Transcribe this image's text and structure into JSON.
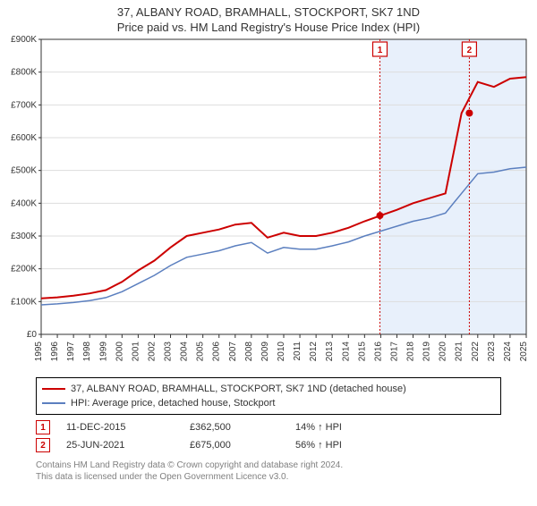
{
  "title_main": "37, ALBANY ROAD, BRAMHALL, STOCKPORT, SK7 1ND",
  "title_sub": "Price paid vs. HM Land Registry's House Price Index (HPI)",
  "chart": {
    "type": "line",
    "plot_bg": "#ffffff",
    "axis_color": "#333333",
    "grid_color": "#dddddd",
    "shade_color": "#e8f0fb",
    "x_years": [
      1995,
      1996,
      1997,
      1998,
      1999,
      2000,
      2001,
      2002,
      2003,
      2004,
      2005,
      2006,
      2007,
      2008,
      2009,
      2010,
      2011,
      2012,
      2013,
      2014,
      2015,
      2016,
      2017,
      2018,
      2019,
      2020,
      2021,
      2022,
      2023,
      2024,
      2025
    ],
    "xlim": [
      1995,
      2025
    ],
    "ylim": [
      0,
      900000
    ],
    "ytick_step": 100000,
    "ytick_labels": [
      "£0",
      "£100K",
      "£200K",
      "£300K",
      "£400K",
      "£500K",
      "£600K",
      "£700K",
      "£800K",
      "£900K"
    ],
    "series": [
      {
        "name": "37, ALBANY ROAD, BRAMHALL, STOCKPORT, SK7 1ND (detached house)",
        "color": "#cc0000",
        "width": 2,
        "y_by_year": [
          110000,
          113000,
          118000,
          125000,
          135000,
          160000,
          195000,
          225000,
          265000,
          300000,
          310000,
          320000,
          335000,
          340000,
          295000,
          310000,
          300000,
          300000,
          310000,
          325000,
          345000,
          362500,
          380000,
          400000,
          415000,
          430000,
          675000,
          770000,
          755000,
          780000,
          785000
        ]
      },
      {
        "name": "HPI: Average price, detached house, Stockport",
        "color": "#5b7fbf",
        "width": 1.5,
        "y_by_year": [
          90000,
          93000,
          97000,
          103000,
          112000,
          130000,
          155000,
          180000,
          210000,
          235000,
          245000,
          255000,
          270000,
          280000,
          248000,
          265000,
          260000,
          260000,
          270000,
          282000,
          300000,
          315000,
          330000,
          345000,
          355000,
          370000,
          430000,
          490000,
          495000,
          505000,
          510000
        ]
      }
    ],
    "sale_markers": [
      {
        "num": "1",
        "year_frac": 2015.95,
        "price": 362500,
        "color": "#cc0000"
      },
      {
        "num": "2",
        "year_frac": 2021.48,
        "price": 675000,
        "color": "#cc0000"
      }
    ],
    "shaded_spans": [
      {
        "from": 2015.95,
        "to": 2021.48
      },
      {
        "from": 2021.48,
        "to": 2025.0
      }
    ]
  },
  "legend": {
    "rows": [
      {
        "color": "#cc0000",
        "label": "37, ALBANY ROAD, BRAMHALL, STOCKPORT, SK7 1ND (detached house)"
      },
      {
        "color": "#5b7fbf",
        "label": "HPI: Average price, detached house, Stockport"
      }
    ]
  },
  "sales": [
    {
      "num": "1",
      "color": "#cc0000",
      "date": "11-DEC-2015",
      "price": "£362,500",
      "pct": "14% ↑ HPI"
    },
    {
      "num": "2",
      "color": "#cc0000",
      "date": "25-JUN-2021",
      "price": "£675,000",
      "pct": "56% ↑ HPI"
    }
  ],
  "footer": {
    "line1": "Contains HM Land Registry data © Crown copyright and database right 2024.",
    "line2": "This data is licensed under the Open Government Licence v3.0."
  }
}
